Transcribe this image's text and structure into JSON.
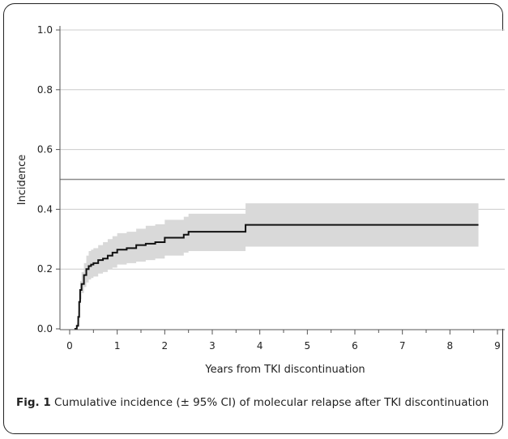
{
  "chart_data": {
    "type": "line",
    "title": "",
    "xlabel": "Years from TKI discontinuation",
    "ylabel": "Incidence",
    "xlim": [
      0,
      9
    ],
    "ylim": [
      0,
      1.0
    ],
    "x_ticks": [
      0,
      1,
      2,
      3,
      4,
      5,
      6,
      7,
      8,
      9
    ],
    "y_ticks": [
      "0.0",
      "0.2",
      "0.4",
      "0.6",
      "0.8",
      "1.0"
    ],
    "y_gridlines": [
      0.2,
      0.4,
      0.6,
      0.8,
      1.0
    ],
    "reference_line_y": 0.5,
    "series": [
      {
        "color": "#111111",
        "band_color": "#d9d9d9",
        "x": [
          0.1,
          0.15,
          0.18,
          0.2,
          0.22,
          0.25,
          0.3,
          0.35,
          0.4,
          0.45,
          0.5,
          0.6,
          0.7,
          0.8,
          0.9,
          1.0,
          1.2,
          1.4,
          1.6,
          1.8,
          2.0,
          2.4,
          2.5,
          3.7,
          8.6
        ],
        "y": [
          0.0,
          0.01,
          0.04,
          0.09,
          0.13,
          0.15,
          0.18,
          0.2,
          0.21,
          0.215,
          0.22,
          0.23,
          0.235,
          0.245,
          0.255,
          0.265,
          0.27,
          0.28,
          0.285,
          0.29,
          0.305,
          0.315,
          0.325,
          0.348,
          0.348
        ],
        "lower": [
          0.0,
          0.005,
          0.025,
          0.06,
          0.1,
          0.12,
          0.14,
          0.155,
          0.165,
          0.17,
          0.175,
          0.185,
          0.19,
          0.2,
          0.205,
          0.215,
          0.22,
          0.225,
          0.23,
          0.235,
          0.245,
          0.255,
          0.26,
          0.275,
          0.275
        ],
        "upper": [
          0.0,
          0.02,
          0.06,
          0.12,
          0.16,
          0.19,
          0.22,
          0.245,
          0.26,
          0.265,
          0.27,
          0.28,
          0.29,
          0.3,
          0.31,
          0.32,
          0.325,
          0.335,
          0.345,
          0.35,
          0.365,
          0.375,
          0.385,
          0.42,
          0.42
        ]
      }
    ]
  },
  "caption": {
    "label": "Fig. 1",
    "text": " Cumulative incidence (± 95% CI) of molecular relapse after TKI discontinuation"
  }
}
